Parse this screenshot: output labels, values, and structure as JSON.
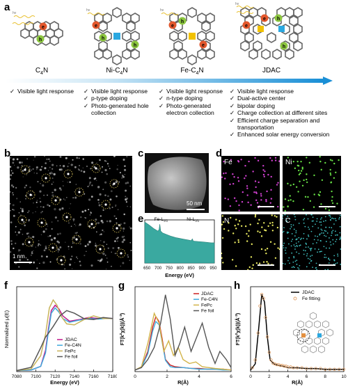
{
  "panels": [
    "a",
    "b",
    "c",
    "d",
    "e",
    "f",
    "g",
    "h"
  ],
  "a": {
    "categories": [
      {
        "name_main": "C",
        "name_sub": "4",
        "name_post": "N",
        "features": [
          "Visible light response"
        ]
      },
      {
        "name_main": "Ni-C",
        "name_sub": "4",
        "name_post": "N",
        "features": [
          "Visible light response",
          "p-type doping",
          "Photo-generated hole collection"
        ]
      },
      {
        "name_main": "Fe-C",
        "name_sub": "4",
        "name_post": "N",
        "features": [
          "Visible light response",
          "n-type doping",
          "Photo-generated electron collection"
        ]
      },
      {
        "name_main": "JDAC",
        "name_sub": "",
        "name_post": "",
        "features": [
          "Visible light response",
          "Dual-active center",
          "bipolar doping",
          "Charge collection at different sites",
          "Efficient charge separation and transportation",
          "Enhanced solar energy conversion"
        ]
      }
    ],
    "symbols": {
      "electron": "e",
      "hole": "h",
      "hv": "hv",
      "check": "✓",
      "plus": "+",
      "minus": "−"
    },
    "colors": {
      "electron": "#e2572c",
      "hole": "#8cc63f",
      "ni": "#2ba8e0",
      "fe": "#f2c200",
      "arrow_start": "#ffffff",
      "arrow_end": "#1a8fd6"
    }
  },
  "b": {
    "scale_label": "1 nm"
  },
  "c": {
    "scale_label": "50 nm"
  },
  "d": {
    "maps": [
      {
        "label": "Fe",
        "color": "#d040d0"
      },
      {
        "label": "Ni",
        "color": "#66dd44"
      },
      {
        "label": "N",
        "color": "#e8e860"
      },
      {
        "label": "C",
        "color": "#40c0c0"
      }
    ]
  },
  "chart_data": [
    {
      "panel": "e",
      "type": "area",
      "xlabel": "Energy (eV)",
      "xticks": [
        650,
        700,
        750,
        800,
        850,
        900,
        950
      ],
      "xlim": [
        640,
        955
      ],
      "annotations": [
        {
          "text_main": "Fe-L",
          "text_sub": "3/2",
          "x": 708
        },
        {
          "text_main": "Ni-L",
          "text_sub": "3/2",
          "x": 855
        }
      ],
      "x": [
        640,
        660,
        680,
        700,
        705,
        708,
        712,
        720,
        740,
        760,
        780,
        800,
        820,
        840,
        850,
        855,
        860,
        880,
        900,
        920,
        940,
        955
      ],
      "y": [
        0.95,
        0.88,
        0.8,
        0.74,
        0.78,
        0.9,
        0.74,
        0.7,
        0.66,
        0.62,
        0.59,
        0.57,
        0.55,
        0.53,
        0.52,
        0.56,
        0.51,
        0.5,
        0.49,
        0.48,
        0.47,
        0.47
      ],
      "color": "#3aa9a0"
    },
    {
      "panel": "f",
      "type": "line",
      "xlabel": "Energy (eV)",
      "ylabel": "Normalized μ(E)",
      "xticks": [
        7080,
        7100,
        7120,
        7140,
        7160,
        7180
      ],
      "xlim": [
        7080,
        7180
      ],
      "ylim": [
        0,
        1.6
      ],
      "legend": [
        "JDAC",
        "Fe-C4N",
        "FePc",
        "Fe foil"
      ],
      "series": [
        {
          "name": "JDAC",
          "color": "#c0158a",
          "x": [
            7080,
            7095,
            7105,
            7110,
            7113,
            7116,
            7120,
            7124,
            7128,
            7135,
            7145,
            7155,
            7165,
            7172,
            7180
          ],
          "y": [
            0.02,
            0.03,
            0.1,
            0.4,
            0.8,
            1.15,
            1.25,
            1.18,
            1.05,
            0.95,
            0.98,
            1.02,
            1.0,
            1.01,
            1.0
          ]
        },
        {
          "name": "Fe-C4N",
          "color": "#3fa9dd",
          "x": [
            7080,
            7095,
            7105,
            7110,
            7113,
            7116,
            7120,
            7124,
            7128,
            7135,
            7145,
            7155,
            7165,
            7172,
            7180
          ],
          "y": [
            0.02,
            0.03,
            0.1,
            0.35,
            0.75,
            1.1,
            1.2,
            1.12,
            1.0,
            0.93,
            0.97,
            1.0,
            0.99,
            1.0,
            1.0
          ]
        },
        {
          "name": "FePc",
          "color": "#c8b45a",
          "x": [
            7080,
            7095,
            7105,
            7110,
            7114,
            7118,
            7122,
            7126,
            7132,
            7140,
            7150,
            7160,
            7170,
            7180
          ],
          "y": [
            0.02,
            0.05,
            0.3,
            0.7,
            1.2,
            1.35,
            1.25,
            1.05,
            0.9,
            0.88,
            0.98,
            1.05,
            1.0,
            1.0
          ]
        },
        {
          "name": "Fe foil",
          "color": "#555555",
          "x": [
            7080,
            7095,
            7105,
            7110,
            7113,
            7118,
            7125,
            7132,
            7140,
            7150,
            7160,
            7170,
            7180
          ],
          "y": [
            0.02,
            0.08,
            0.45,
            0.65,
            0.72,
            0.85,
            1.05,
            1.15,
            1.1,
            1.0,
            0.98,
            1.02,
            1.0
          ]
        }
      ]
    },
    {
      "panel": "g",
      "type": "line",
      "xlabel": "R(Å)",
      "ylabel_main": "FT(k",
      "ylabel_sup": "2",
      "ylabel_mid": "χ(k))(Å",
      "ylabel_sup2": "-3",
      "ylabel_end": ")",
      "xticks": [
        0,
        2,
        4,
        6
      ],
      "xlim": [
        0,
        6
      ],
      "ylim": [
        0,
        1.05
      ],
      "legend": [
        "JDAC",
        "Fe-C4N",
        "FePc",
        "Fe foil"
      ],
      "series": [
        {
          "name": "JDAC",
          "color": "#cc1f1f",
          "x": [
            0,
            0.4,
            0.8,
            1.1,
            1.3,
            1.5,
            1.7,
            1.9,
            2.2,
            2.5,
            3.0,
            3.5,
            4.0,
            4.5,
            5.0,
            5.5,
            6.0
          ],
          "y": [
            0.02,
            0.05,
            0.25,
            0.55,
            0.68,
            0.62,
            0.4,
            0.15,
            0.08,
            0.06,
            0.05,
            0.04,
            0.04,
            0.03,
            0.03,
            0.03,
            0.02
          ]
        },
        {
          "name": "Fe-C4N",
          "color": "#3fa9dd",
          "x": [
            0,
            0.4,
            0.8,
            1.1,
            1.3,
            1.5,
            1.7,
            1.9,
            2.2,
            2.5,
            3.0,
            3.5,
            4.0,
            4.5,
            5.0,
            5.5,
            6.0
          ],
          "y": [
            0.02,
            0.05,
            0.22,
            0.5,
            0.62,
            0.58,
            0.36,
            0.14,
            0.06,
            0.05,
            0.05,
            0.04,
            0.03,
            0.03,
            0.03,
            0.02,
            0.02
          ]
        },
        {
          "name": "FePc",
          "color": "#d2b44a",
          "x": [
            0,
            0.4,
            0.8,
            1.2,
            1.5,
            1.8,
            2.1,
            2.4,
            2.7,
            3.0,
            3.4,
            3.8,
            4.2,
            4.6,
            5.0,
            5.5,
            6.0
          ],
          "y": [
            0.02,
            0.06,
            0.35,
            0.72,
            0.6,
            0.25,
            0.38,
            0.2,
            0.3,
            0.15,
            0.1,
            0.12,
            0.06,
            0.05,
            0.04,
            0.03,
            0.02
          ]
        },
        {
          "name": "Fe foil",
          "color": "#555555",
          "x": [
            0,
            0.4,
            0.8,
            1.2,
            1.6,
            1.9,
            2.2,
            2.5,
            2.8,
            3.1,
            3.5,
            3.9,
            4.2,
            4.6,
            5.0,
            5.3,
            5.7,
            6.0
          ],
          "y": [
            0.02,
            0.05,
            0.15,
            0.3,
            0.6,
            0.95,
            0.65,
            0.2,
            0.35,
            0.55,
            0.25,
            0.45,
            0.6,
            0.3,
            0.1,
            0.25,
            0.15,
            0.05
          ]
        }
      ]
    },
    {
      "panel": "h",
      "type": "line",
      "xlabel": "R(Å)",
      "ylabel_main": "FT(k",
      "ylabel_sup": "2",
      "ylabel_mid": "χ(k))(Å",
      "ylabel_sup2": "-3",
      "ylabel_end": ")",
      "xticks": [
        0,
        2,
        4,
        6,
        8,
        10
      ],
      "xlim": [
        0,
        10
      ],
      "ylim": [
        0,
        1.1
      ],
      "legend": [
        "JDAC",
        "Fe fitting"
      ],
      "series": [
        {
          "name": "JDAC",
          "color": "#000000",
          "x": [
            0,
            0.5,
            0.9,
            1.2,
            1.5,
            1.8,
            2.1,
            2.5,
            3.0,
            3.5,
            4.0,
            5.0,
            6.0,
            7.0,
            8.0,
            9.0,
            10.0
          ],
          "y": [
            0.02,
            0.1,
            0.6,
            1.0,
            0.9,
            0.45,
            0.15,
            0.1,
            0.08,
            0.07,
            0.05,
            0.05,
            0.04,
            0.04,
            0.03,
            0.03,
            0.03
          ]
        },
        {
          "name": "Fe fitting",
          "color": "#e0a068",
          "x": [
            0.2,
            0.5,
            0.8,
            1.0,
            1.2,
            1.4,
            1.6,
            1.8,
            2.0,
            2.2,
            2.4,
            2.6,
            2.8,
            3.0,
            3.2,
            3.4,
            3.6,
            3.8,
            4.0,
            4.3,
            4.6,
            5.0,
            5.5,
            6.0,
            6.5,
            7.0,
            7.5,
            8.0,
            8.5,
            9.0,
            9.5,
            10.0
          ],
          "y": [
            0.05,
            0.15,
            0.5,
            0.85,
            1.0,
            0.95,
            0.7,
            0.45,
            0.25,
            0.15,
            0.11,
            0.1,
            0.09,
            0.09,
            0.08,
            0.08,
            0.07,
            0.07,
            0.06,
            0.06,
            0.05,
            0.05,
            0.05,
            0.04,
            0.04,
            0.04,
            0.04,
            0.03,
            0.03,
            0.03,
            0.03,
            0.03
          ]
        }
      ]
    }
  ]
}
